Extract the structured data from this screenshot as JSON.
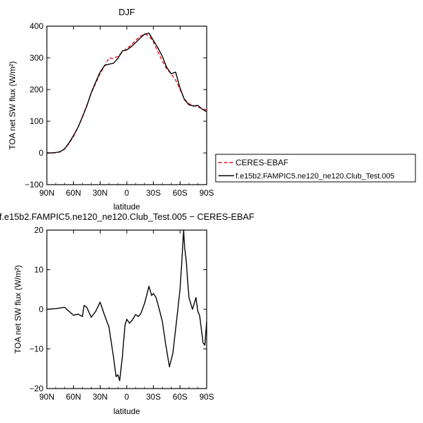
{
  "chart_data": [
    {
      "type": "line",
      "title": "DJF",
      "xlabel": "latitude",
      "ylabel": "TOA net SW flux (W/m²)",
      "xlim": [
        90,
        -90
      ],
      "ylim": [
        -100,
        400
      ],
      "xticks": [
        "90N",
        "60N",
        "30N",
        "0",
        "30S",
        "60S",
        "90S"
      ],
      "yticks": [
        "−100",
        "0",
        "100",
        "200",
        "300",
        "400"
      ],
      "legend_position": "right",
      "series": [
        {
          "name": "CERES-EBAF",
          "style": "dashed",
          "color": "#e8101a",
          "x": [
            90,
            85,
            80,
            75,
            70,
            65,
            60,
            55,
            50,
            45,
            40,
            35,
            30,
            25,
            20,
            15,
            10,
            5,
            0,
            -5,
            -10,
            -15,
            -20,
            -25,
            -30,
            -35,
            -40,
            -45,
            -50,
            -55,
            -60,
            -65,
            -70,
            -75,
            -80,
            -85,
            -90
          ],
          "y": [
            0,
            0,
            1,
            3,
            12,
            30,
            52,
            80,
            115,
            150,
            188,
            220,
            250,
            275,
            300,
            298,
            305,
            318,
            330,
            340,
            355,
            368,
            375,
            370,
            350,
            320,
            290,
            265,
            250,
            230,
            200,
            170,
            155,
            150,
            145,
            140,
            135
          ]
        },
        {
          "name": "f.e15b2.FAMPIC5.ne120_ne120.Club_Test.005",
          "style": "solid",
          "color": "#000000",
          "x": [
            90,
            85,
            80,
            75,
            70,
            65,
            60,
            55,
            50,
            45,
            40,
            35,
            30,
            25,
            20,
            15,
            10,
            5,
            0,
            -5,
            -10,
            -15,
            -20,
            -25,
            -30,
            -35,
            -40,
            -45,
            -50,
            -55,
            -60,
            -65,
            -70,
            -75,
            -80,
            -85,
            -90
          ],
          "y": [
            0,
            0,
            1,
            4,
            13,
            32,
            55,
            80,
            113,
            148,
            190,
            224,
            255,
            276,
            280,
            283,
            298,
            322,
            325,
            335,
            348,
            362,
            375,
            378,
            355,
            332,
            305,
            270,
            250,
            255,
            205,
            168,
            152,
            148,
            150,
            138,
            130
          ]
        }
      ]
    },
    {
      "type": "line",
      "title": "f.e15b2.FAMPIC5.ne120_ne120.Club_Test.005 − CERES-EBAF",
      "xlabel": "latitude",
      "ylabel": "TOA net SW flux (W/m²)",
      "xlim": [
        90,
        -90
      ],
      "ylim": [
        -20,
        20
      ],
      "xticks": [
        "90N",
        "60N",
        "30N",
        "0",
        "30S",
        "60S",
        "90S"
      ],
      "yticks": [
        "−20",
        "−10",
        "0",
        "10",
        "20"
      ],
      "series": [
        {
          "color": "#000000",
          "x": [
            90,
            80,
            70,
            65,
            60,
            55,
            50,
            48,
            45,
            40,
            35,
            30,
            28,
            25,
            20,
            15,
            12,
            10,
            8,
            5,
            2,
            0,
            -3,
            -6,
            -10,
            -13,
            -16,
            -20,
            -25,
            -28,
            -30,
            -33,
            -36,
            -40,
            -44,
            -48,
            -52,
            -56,
            -60,
            -62,
            -64,
            -65,
            -67,
            -70,
            -74,
            -78,
            -80,
            -82,
            -84,
            -86,
            -88,
            -90
          ],
          "y": [
            0,
            0.2,
            0.5,
            -0.5,
            -1.5,
            -1.2,
            -1.8,
            1.0,
            0.5,
            -2.0,
            -0.5,
            1.8,
            0.5,
            -1.5,
            -4.5,
            -12.0,
            -17.0,
            -16.5,
            -18.0,
            -12.0,
            -4.0,
            -2.5,
            -3.5,
            -2.8,
            -1.3,
            -1.8,
            -1.0,
            1.5,
            5.8,
            3.5,
            4.0,
            3.0,
            0.5,
            -3.0,
            -9.0,
            -14.5,
            -11.0,
            -3.0,
            5.0,
            12.0,
            20.0,
            16.0,
            12.0,
            3.0,
            0.0,
            3.0,
            -0.5,
            -1.5,
            -5.0,
            -8.5,
            -9.0,
            -3.0
          ]
        }
      ]
    }
  ],
  "legend": {
    "entries": [
      "CERES-EBAF",
      "f.e15b2.FAMPIC5.ne120_ne120.Club_Test.005"
    ]
  },
  "colors": {
    "ceres": "#e8101a",
    "model": "#000000",
    "axis": "#000000"
  }
}
